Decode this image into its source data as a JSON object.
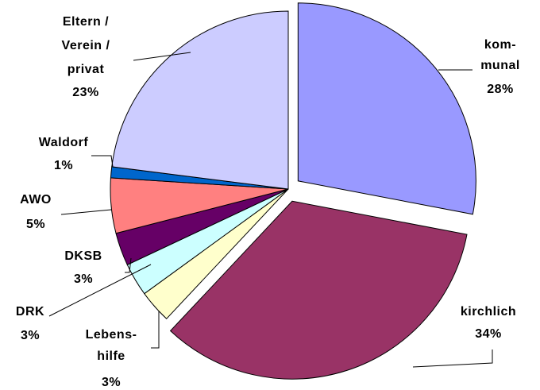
{
  "chart_data": {
    "type": "pie",
    "categories": [
      "kom-\nmunal",
      "kirchlich",
      "Lebens-\nhilfe",
      "DRK",
      "DKSB",
      "AWO",
      "Waldorf",
      "Eltern /\nVerein /\nprivat"
    ],
    "values": [
      28,
      34,
      3,
      3,
      3,
      5,
      1,
      23
    ],
    "value_labels": [
      "28%",
      "34%",
      "3%",
      "3%",
      "3%",
      "5%",
      "1%",
      "23%"
    ],
    "colors": [
      "#9999ff",
      "#993366",
      "#ffffcc",
      "#ccffff",
      "#660066",
      "#ff8080",
      "#0066cc",
      "#ccccff"
    ]
  }
}
